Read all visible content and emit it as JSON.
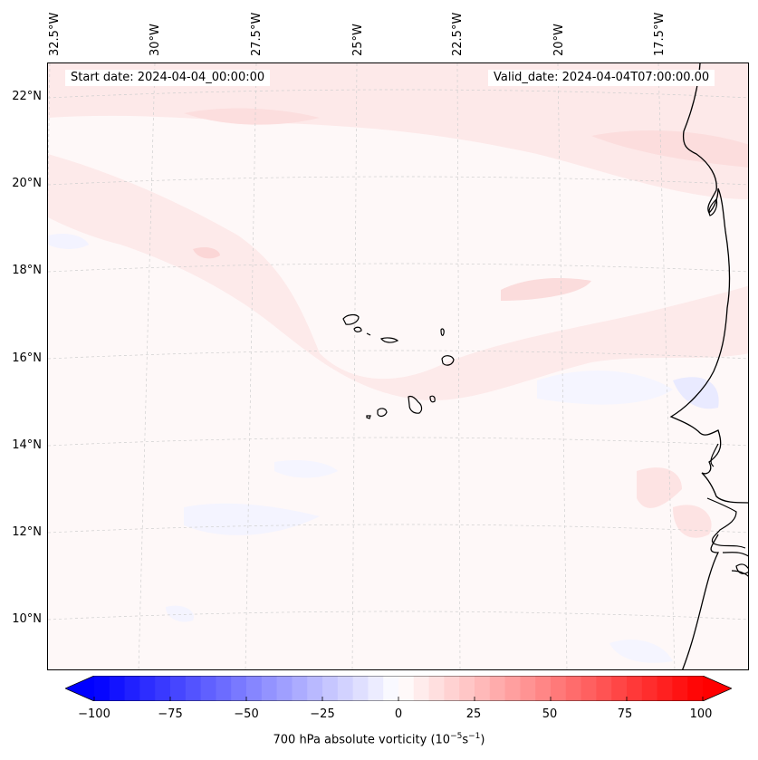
{
  "map": {
    "start_date_label": "Start date: 2024-04-04_00:00:00",
    "valid_date_label": "Valid_date: 2024-04-04T07:00:00.00",
    "longitude_labels": [
      "32.5°W",
      "30°W",
      "27.5°W",
      "25°W",
      "22.5°W",
      "20°W",
      "17.5°W"
    ],
    "latitude_labels": [
      "22°N",
      "20°N",
      "18°N",
      "16°N",
      "14°N",
      "12°N",
      "10°N"
    ],
    "land_color": "#fef8f8",
    "coastline_color": "#000000",
    "gridline_color": "#c8c8c8"
  },
  "colorbar": {
    "title": "700 hPa absolute vorticity (10",
    "title_exp1": "−5",
    "title_mid": "s",
    "title_exp2": "−1",
    "title_end": ")",
    "tick_labels": [
      "−100",
      "−75",
      "−50",
      "−25",
      "0",
      "25",
      "50",
      "75",
      "100"
    ],
    "min": -100,
    "max": 100,
    "levels": 41,
    "low_color": "#0000ff",
    "mid_color": "#ffffff",
    "high_color": "#ff0000"
  }
}
